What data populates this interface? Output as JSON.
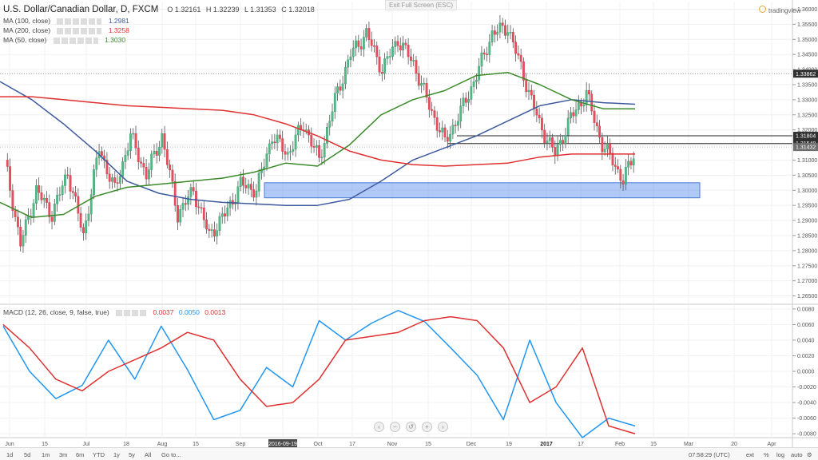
{
  "header": {
    "title": "U.S. Dollar/Canadian Dollar, D, FXCM",
    "open": "O 1.32161",
    "high": "H 1.32239",
    "low": "L 1.31353",
    "close": "C 1.32018"
  },
  "indicators": [
    {
      "label": "MA (100, close)",
      "value": "1.2981",
      "color": "#3d5a9e"
    },
    {
      "label": "MA (200, close)",
      "value": "1.3258",
      "color": "#e03030"
    },
    {
      "label": "MA (50, close)",
      "value": "1.3030",
      "color": "#3a8a2a"
    }
  ],
  "macd": {
    "label": "MACD (12, 26, close, 9, false, true)",
    "v1": "0.0037",
    "v2": "0.0050",
    "v3": "0.0013",
    "c1": "#e03030",
    "c2": "#2196f3",
    "c3": "#e03030"
  },
  "toolbar": {
    "exit_full_screen": "Exit Full Screen (ESC)",
    "brand": "tradingview",
    "timeframes": [
      "1d",
      "5d",
      "1m",
      "3m",
      "6m",
      "YTD",
      "1y",
      "5y",
      "All"
    ],
    "goto": "Go to...",
    "clock": "07:58:29 (UTC)",
    "options": [
      "ext",
      "%",
      "log",
      "auto"
    ]
  },
  "chart_data": {
    "type": "candlestick",
    "instrument": "U.S. Dollar/Canadian Dollar",
    "timeframe": "D",
    "source": "FXCM",
    "x_tick_labels": [
      "Jun",
      "15",
      "Jul",
      "18",
      "Aug",
      "15",
      "Sep",
      "2016-09-19",
      "Oct",
      "17",
      "Nov",
      "15",
      "Dec",
      "19",
      "2017",
      "17",
      "Feb",
      "15",
      "Mar",
      "20",
      "Apr"
    ],
    "price_axis": {
      "ticks": [
        "1.36000",
        "1.35500",
        "1.35000",
        "1.34500",
        "1.34000",
        "1.33500",
        "1.33000",
        "1.32500",
        "1.32000",
        "1.31500",
        "1.31000",
        "1.30500",
        "1.30000",
        "1.29500",
        "1.29000",
        "1.28500",
        "1.28000",
        "1.27500",
        "1.27000",
        "1.26500"
      ],
      "ylim": [
        1.2625,
        1.3625
      ]
    },
    "price_labels": [
      {
        "text": "1.33862",
        "value": 1.33862,
        "dark": true
      },
      {
        "text": "1.31804",
        "value": 1.31804,
        "dark": true
      },
      {
        "text": "1.31548",
        "value": 1.31548,
        "dark": true
      },
      {
        "text": "1.31432",
        "value": 1.31432,
        "dark": false
      }
    ],
    "horizontal_lines": [
      1.31804,
      1.31548
    ],
    "support_zone": {
      "from": 1.2975,
      "to": 1.3025
    },
    "macd_axis": {
      "ticks": [
        "0.0080",
        "0.0060",
        "0.0040",
        "0.0020",
        "0.0000",
        "-0.0020",
        "-0.0040",
        "-0.0060",
        "-0.0080"
      ],
      "ylim": [
        -0.0085,
        0.0085
      ]
    },
    "grid": true,
    "series": [
      {
        "name": "MA (100, close)",
        "color": "#3d5a9e",
        "values": [
          1.336,
          1.33,
          1.322,
          1.313,
          1.303,
          1.299,
          1.297,
          1.296,
          1.2955,
          1.295,
          1.295,
          1.297,
          1.303,
          1.31,
          1.314,
          1.318,
          1.323,
          1.328,
          1.33,
          1.329,
          1.3285
        ]
      },
      {
        "name": "MA (200, close)",
        "color": "#e03030",
        "values": [
          1.331,
          1.331,
          1.33,
          1.329,
          1.328,
          1.3275,
          1.327,
          1.3265,
          1.325,
          1.322,
          1.318,
          1.313,
          1.31,
          1.3085,
          1.308,
          1.3085,
          1.309,
          1.311,
          1.312,
          1.312,
          1.312
        ]
      },
      {
        "name": "MA (50, close)",
        "color": "#3a8a2a",
        "values": [
          1.296,
          1.291,
          1.292,
          1.298,
          1.301,
          1.302,
          1.303,
          1.304,
          1.306,
          1.309,
          1.308,
          1.315,
          1.325,
          1.33,
          1.333,
          1.338,
          1.339,
          1.335,
          1.33,
          1.327,
          1.327
        ]
      },
      {
        "name": "MACD",
        "color": "#2196f3",
        "values": [
          0.0058,
          0.0,
          -0.0035,
          -0.0018,
          0.004,
          -0.001,
          0.0058,
          0.0002,
          -0.0062,
          -0.005,
          0.0005,
          -0.002,
          0.0065,
          0.004,
          0.0062,
          0.0078,
          0.0064,
          0.003,
          -0.0005,
          -0.0062,
          0.004,
          -0.004,
          -0.0085,
          -0.006,
          -0.007
        ]
      },
      {
        "name": "Signal",
        "color": "#e03030",
        "values": [
          0.006,
          0.003,
          -0.001,
          -0.0025,
          0.0,
          0.0015,
          0.003,
          0.005,
          0.004,
          -0.001,
          -0.0045,
          -0.004,
          -0.001,
          0.004,
          0.0045,
          0.005,
          0.0065,
          0.007,
          0.0065,
          0.003,
          -0.004,
          -0.002,
          0.003,
          -0.007,
          -0.008
        ]
      }
    ]
  }
}
